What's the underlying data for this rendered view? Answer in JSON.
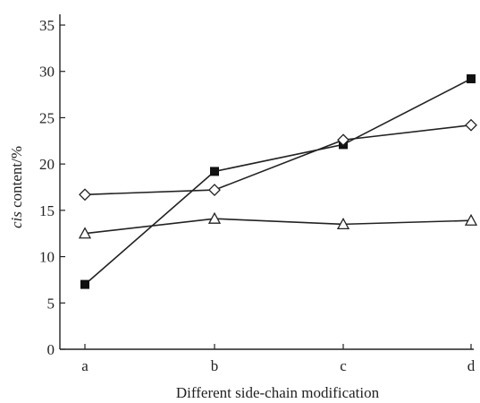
{
  "chart_data": {
    "type": "line",
    "categories": [
      "a",
      "b",
      "c",
      "d"
    ],
    "xlabel": "Different side-chain modification",
    "ylabel_italic": "cis",
    "ylabel_rest": " content/%",
    "ylim": [
      0,
      35
    ],
    "yticks": [
      0,
      5,
      10,
      15,
      20,
      25,
      30,
      35
    ],
    "grid": false,
    "series": [
      {
        "marker": "filled-square",
        "values": [
          7,
          19.2,
          22.1,
          29.2
        ]
      },
      {
        "marker": "open-diamond",
        "values": [
          16.7,
          17.2,
          22.6,
          24.2
        ]
      },
      {
        "marker": "open-triangle",
        "values": [
          12.5,
          14.1,
          13.5,
          13.9
        ]
      }
    ],
    "colors": {
      "ink": "#222222",
      "background": "#ffffff"
    }
  }
}
